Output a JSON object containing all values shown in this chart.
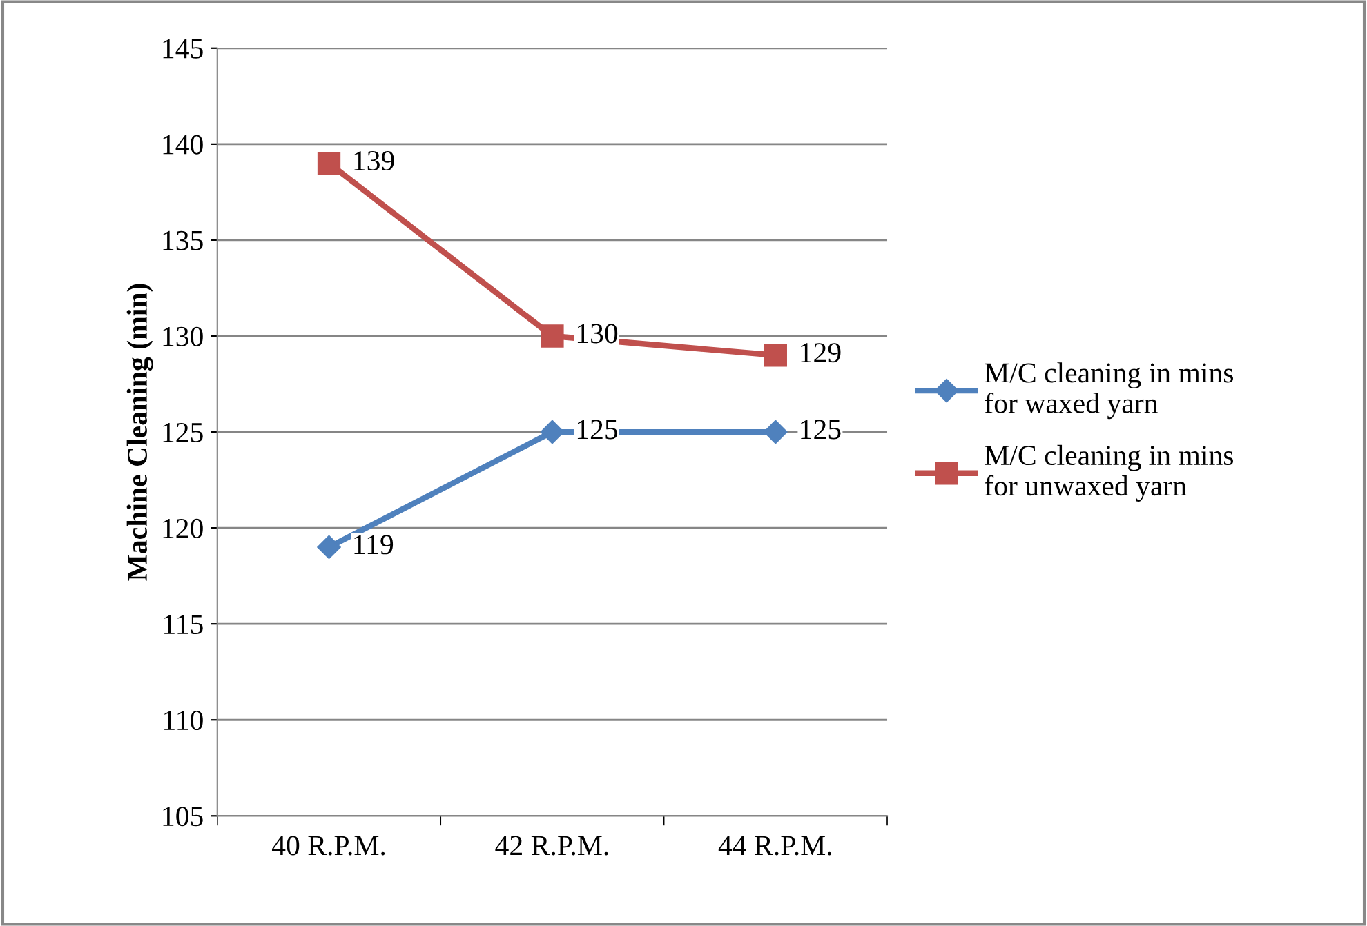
{
  "chart_data": {
    "type": "line",
    "ylabel": "Machine Cleaning (min)",
    "categories": [
      "40 R.P.M.",
      "42 R.P.M.",
      "44 R.P.M."
    ],
    "series": [
      {
        "name": "M/C cleaning in mins for waxed yarn",
        "color": "#4f81bd",
        "marker": "diamond",
        "values": [
          119,
          125,
          125
        ]
      },
      {
        "name": "M/C cleaning in mins for unwaxed yarn",
        "color": "#c0504d",
        "marker": "square",
        "values": [
          139,
          130,
          129
        ]
      }
    ],
    "ylim": [
      105,
      145
    ],
    "yticks": [
      105,
      110,
      115,
      120,
      125,
      130,
      135,
      140,
      145
    ],
    "grid": "y",
    "legend": "right",
    "data_labels": true
  }
}
